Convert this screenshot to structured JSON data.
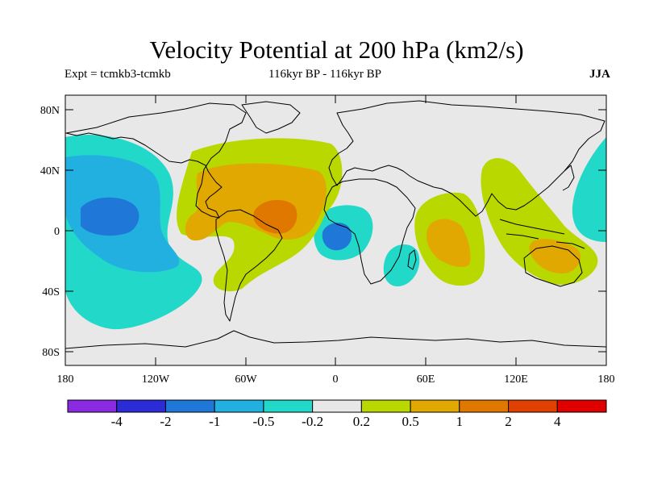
{
  "header": {
    "title": "Velocity Potential at 200 hPa (km2/s)",
    "expt": "Expt = tcmkb3-tcmkb",
    "period": "116kyr BP - 116kyr BP",
    "season": "JJA"
  },
  "axes": {
    "y_ticks": [
      "80N",
      "40N",
      "0",
      "40S",
      "80S"
    ],
    "x_ticks": [
      "180",
      "120W",
      "60W",
      "0",
      "60E",
      "120E",
      "180"
    ]
  },
  "colorbar": {
    "colors": [
      "#8a2be2",
      "#2b2bd8",
      "#1f78d8",
      "#22b0e0",
      "#22d8c8",
      "#e8e8e8",
      "#b8d800",
      "#e0a800",
      "#e07800",
      "#e04000",
      "#e00000"
    ],
    "labels": [
      "-4",
      "-2",
      "-1",
      "-0.5",
      "-0.2",
      "0.2",
      "0.5",
      "1",
      "2",
      "4"
    ]
  },
  "colors": {
    "background": "#e8e8e8",
    "coast": "#000000"
  }
}
